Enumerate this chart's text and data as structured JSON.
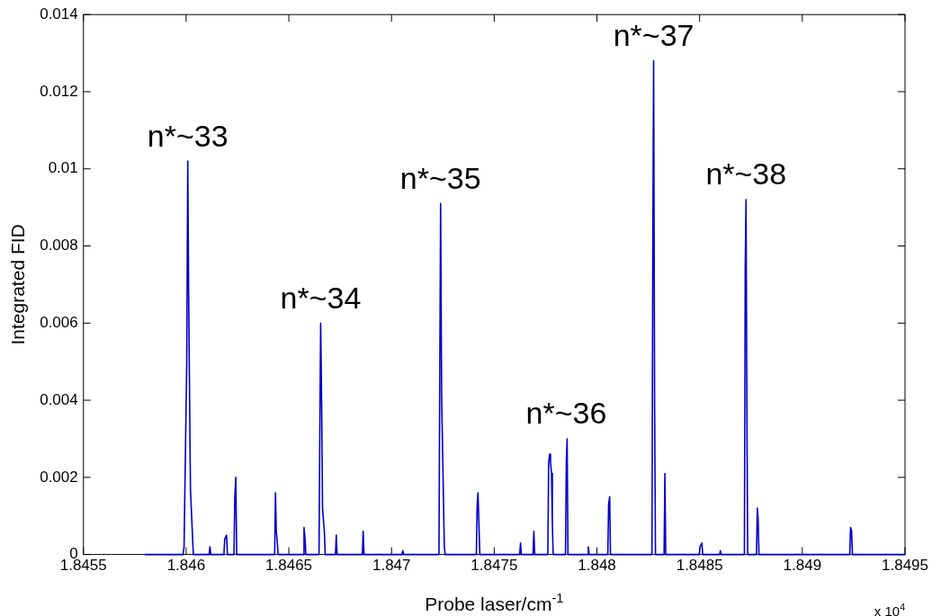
{
  "chart_data": {
    "type": "line",
    "xlabel": "Probe laser/cm$^{-1}$",
    "ylabel": "Integrated FID",
    "series": [
      {
        "color": "#0000cc",
        "x": [
          1.8458,
          1.845985,
          1.84599,
          1.846003,
          1.846008,
          1.846012,
          1.846021,
          1.84603,
          1.846035,
          1.846112,
          1.846116,
          1.84612,
          1.846184,
          1.846188,
          1.846197,
          1.846201,
          1.846233,
          1.846237,
          1.846242,
          1.846246,
          1.846431,
          1.846435,
          1.846439,
          1.846444,
          1.846448,
          1.84657,
          1.846574,
          1.846579,
          1.846583,
          1.846647,
          1.846651,
          1.846655,
          1.84666,
          1.846664,
          1.846673,
          1.846677,
          1.846727,
          1.846731,
          1.846735,
          1.846858,
          1.846862,
          1.846866,
          1.847051,
          1.847055,
          1.847059,
          1.847231,
          1.847235,
          1.847239,
          1.847244,
          1.847257,
          1.847261,
          1.847413,
          1.847417,
          1.847421,
          1.847426,
          1.84743,
          1.847624,
          1.847628,
          1.847632,
          1.847689,
          1.847693,
          1.847697,
          1.847761,
          1.847765,
          1.84777,
          1.847774,
          1.847779,
          1.847783,
          1.847787,
          1.847847,
          1.847851,
          1.847855,
          1.847859,
          1.847954,
          1.847958,
          1.847962,
          1.848053,
          1.848057,
          1.848062,
          1.848066,
          1.848268,
          1.848272,
          1.848276,
          1.848281,
          1.848285,
          1.848327,
          1.848331,
          1.848335,
          1.848498,
          1.848502,
          1.848511,
          1.848515,
          1.848597,
          1.848601,
          1.848605,
          1.848718,
          1.848722,
          1.848726,
          1.84873,
          1.848734,
          1.848777,
          1.848781,
          1.848785,
          1.848789,
          1.849231,
          1.849235,
          1.84924,
          1.849244,
          1.8495
        ],
        "values": [
          0,
          0,
          0.0002,
          0.005,
          0.0102,
          0.0069,
          0.0017,
          0.0006,
          0,
          0,
          0.0002,
          0,
          0,
          0.0004,
          0.0005,
          0,
          0,
          0.0015,
          0.002,
          0,
          0,
          0.0016,
          0.0006,
          0.0003,
          0,
          0,
          0.0007,
          0.0004,
          0,
          0,
          0.0032,
          0.006,
          0.0038,
          0.0012,
          0.0006,
          0,
          0,
          0.0005,
          0,
          0,
          0.0006,
          0,
          0,
          0.0001,
          0,
          0,
          0.0048,
          0.0091,
          0.0041,
          0.0002,
          0,
          0,
          0.0013,
          0.0016,
          0.0007,
          0,
          0,
          0.0003,
          0,
          0,
          0.0006,
          0,
          0,
          0.0024,
          0.0026,
          0.0024,
          0.0021,
          0.0008,
          0,
          0,
          0.0024,
          0.003,
          0,
          0,
          0.0002,
          0,
          0,
          0.0013,
          0.0015,
          0,
          0,
          0.0077,
          0.0128,
          0.0038,
          0,
          0,
          0.0021,
          0,
          0,
          0.0002,
          0.0003,
          0,
          0,
          0.0001,
          0,
          0,
          0.0074,
          0.0092,
          0.0039,
          0,
          0,
          0.0012,
          0.0009,
          0,
          0,
          0.0007,
          0.0006,
          0,
          0
        ]
      }
    ],
    "xlim": [
      1.8455,
      1.8495
    ],
    "xticks": [
      1.8455,
      1.846,
      1.8465,
      1.847,
      1.8475,
      1.848,
      1.8485,
      1.849,
      1.8495
    ],
    "ylim": [
      0,
      0.014
    ],
    "yticks": [
      0,
      0.002,
      0.004,
      0.006,
      0.008,
      0.01,
      0.012,
      0.014
    ],
    "grid": false,
    "legend": false,
    "marker": "none",
    "line_style": "solid",
    "annotations": [
      {
        "text": "n*~33",
        "x": 1.846008,
        "y": 0.0102
      },
      {
        "text": "n*~34",
        "x": 1.846655,
        "y": 0.006
      },
      {
        "text": "n*~35",
        "x": 1.847239,
        "y": 0.0091
      },
      {
        "text": "n*~36",
        "x": 1.847851,
        "y": 0.003
      },
      {
        "text": "n*~37",
        "x": 1.848276,
        "y": 0.0128
      },
      {
        "text": "n*~38",
        "x": 1.848726,
        "y": 0.0092
      },
      "x 10$^{4}$"
    ]
  }
}
